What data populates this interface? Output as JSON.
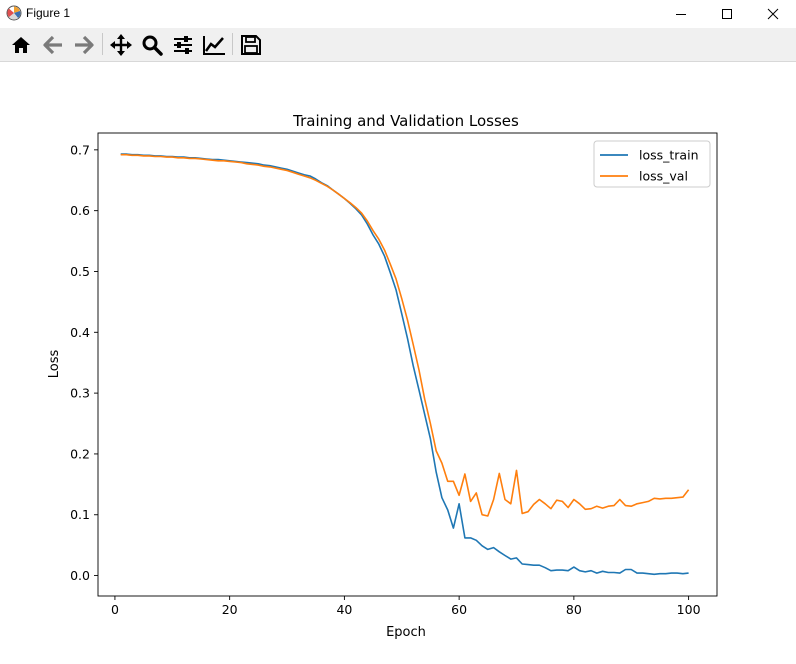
{
  "window": {
    "title": "Figure 1",
    "icon": "matplotlib-icon",
    "controls": [
      "minimize-icon",
      "maximize-icon",
      "close-icon"
    ]
  },
  "toolbar": {
    "buttons": [
      {
        "name": "home-button",
        "icon": "home-icon"
      },
      {
        "name": "back-button",
        "icon": "arrow-left-icon"
      },
      {
        "name": "forward-button",
        "icon": "arrow-right-icon"
      },
      {
        "name": "pan-button",
        "icon": "move-icon"
      },
      {
        "name": "zoom-button",
        "icon": "search-icon"
      },
      {
        "name": "configure-subplots-button",
        "icon": "sliders-icon"
      },
      {
        "name": "edit-axis-button",
        "icon": "chart-line-icon"
      },
      {
        "name": "save-button",
        "icon": "floppy-disk-icon"
      }
    ]
  },
  "chart_data": {
    "type": "line",
    "title": "Training and Validation Losses",
    "xlabel": "Epoch",
    "ylabel": "Loss",
    "xlim": [
      -2.95,
      104.95
    ],
    "ylim": [
      -0.0336,
      0.7277
    ],
    "xticks": [
      0,
      20,
      40,
      60,
      80,
      100
    ],
    "xtick_labels": [
      "0",
      "20",
      "40",
      "60",
      "80",
      "100"
    ],
    "yticks": [
      0.0,
      0.1,
      0.2,
      0.3,
      0.4,
      0.5,
      0.6,
      0.7
    ],
    "ytick_labels": [
      "0.0",
      "0.1",
      "0.2",
      "0.3",
      "0.4",
      "0.5",
      "0.6",
      "0.7"
    ],
    "grid": false,
    "legend_position": "top-right",
    "series": [
      {
        "name": "loss_train",
        "color": "#1f77b4",
        "x": [
          1,
          2,
          3,
          4,
          5,
          6,
          7,
          8,
          9,
          10,
          11,
          12,
          13,
          14,
          15,
          16,
          17,
          18,
          19,
          20,
          21,
          22,
          23,
          24,
          25,
          26,
          27,
          28,
          29,
          30,
          31,
          32,
          33,
          34,
          35,
          36,
          37,
          38,
          39,
          40,
          41,
          42,
          43,
          44,
          45,
          46,
          47,
          48,
          49,
          50,
          51,
          52,
          53,
          54,
          55,
          56,
          57,
          58,
          59,
          60,
          61,
          62,
          63,
          64,
          65,
          66,
          67,
          68,
          69,
          70,
          71,
          72,
          73,
          74,
          75,
          76,
          77,
          78,
          79,
          80,
          81,
          82,
          83,
          84,
          85,
          86,
          87,
          88,
          89,
          90,
          91,
          92,
          93,
          94,
          95,
          96,
          97,
          98,
          99,
          100
        ],
        "y": [
          0.693,
          0.693,
          0.692,
          0.692,
          0.691,
          0.691,
          0.69,
          0.69,
          0.689,
          0.689,
          0.688,
          0.688,
          0.687,
          0.687,
          0.686,
          0.685,
          0.684,
          0.684,
          0.683,
          0.682,
          0.681,
          0.68,
          0.679,
          0.678,
          0.677,
          0.675,
          0.674,
          0.672,
          0.67,
          0.668,
          0.665,
          0.662,
          0.659,
          0.657,
          0.652,
          0.646,
          0.641,
          0.634,
          0.627,
          0.62,
          0.612,
          0.603,
          0.593,
          0.578,
          0.56,
          0.545,
          0.525,
          0.498,
          0.47,
          0.43,
          0.39,
          0.345,
          0.305,
          0.265,
          0.225,
          0.17,
          0.128,
          0.108,
          0.078,
          0.118,
          0.062,
          0.062,
          0.058,
          0.049,
          0.043,
          0.046,
          0.039,
          0.033,
          0.027,
          0.029,
          0.019,
          0.018,
          0.017,
          0.017,
          0.013,
          0.008,
          0.009,
          0.009,
          0.008,
          0.014,
          0.008,
          0.006,
          0.008,
          0.004,
          0.007,
          0.005,
          0.005,
          0.004,
          0.01,
          0.01,
          0.004,
          0.004,
          0.003,
          0.002,
          0.003,
          0.003,
          0.004,
          0.004,
          0.003,
          0.004
        ]
      },
      {
        "name": "loss_val",
        "color": "#ff7f0e",
        "x": [
          1,
          2,
          3,
          4,
          5,
          6,
          7,
          8,
          9,
          10,
          11,
          12,
          13,
          14,
          15,
          16,
          17,
          18,
          19,
          20,
          21,
          22,
          23,
          24,
          25,
          26,
          27,
          28,
          29,
          30,
          31,
          32,
          33,
          34,
          35,
          36,
          37,
          38,
          39,
          40,
          41,
          42,
          43,
          44,
          45,
          46,
          47,
          48,
          49,
          50,
          51,
          52,
          53,
          54,
          55,
          56,
          57,
          58,
          59,
          60,
          61,
          62,
          63,
          64,
          65,
          66,
          67,
          68,
          69,
          70,
          71,
          72,
          73,
          74,
          75,
          76,
          77,
          78,
          79,
          80,
          81,
          82,
          83,
          84,
          85,
          86,
          87,
          88,
          89,
          90,
          91,
          92,
          93,
          94,
          95,
          96,
          97,
          98,
          99,
          100
        ],
        "y": [
          0.692,
          0.692,
          0.691,
          0.691,
          0.69,
          0.69,
          0.689,
          0.689,
          0.688,
          0.688,
          0.687,
          0.687,
          0.686,
          0.686,
          0.685,
          0.684,
          0.683,
          0.682,
          0.682,
          0.681,
          0.68,
          0.679,
          0.677,
          0.676,
          0.675,
          0.673,
          0.672,
          0.67,
          0.668,
          0.666,
          0.663,
          0.66,
          0.657,
          0.654,
          0.65,
          0.645,
          0.64,
          0.634,
          0.627,
          0.62,
          0.613,
          0.605,
          0.596,
          0.583,
          0.567,
          0.553,
          0.535,
          0.512,
          0.488,
          0.455,
          0.42,
          0.38,
          0.338,
          0.29,
          0.25,
          0.205,
          0.185,
          0.155,
          0.155,
          0.132,
          0.167,
          0.122,
          0.136,
          0.1,
          0.098,
          0.125,
          0.168,
          0.125,
          0.118,
          0.173,
          0.102,
          0.105,
          0.117,
          0.125,
          0.118,
          0.11,
          0.124,
          0.122,
          0.112,
          0.125,
          0.118,
          0.109,
          0.11,
          0.114,
          0.111,
          0.114,
          0.115,
          0.125,
          0.115,
          0.114,
          0.118,
          0.12,
          0.122,
          0.127,
          0.126,
          0.127,
          0.127,
          0.128,
          0.129,
          0.141
        ]
      }
    ]
  }
}
